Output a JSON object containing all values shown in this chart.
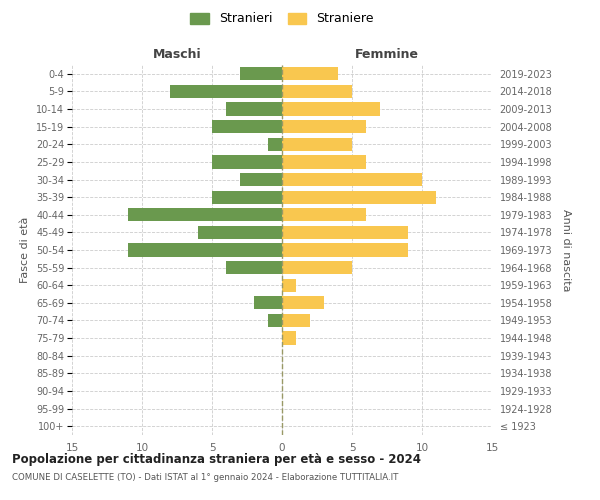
{
  "age_groups": [
    "100+",
    "95-99",
    "90-94",
    "85-89",
    "80-84",
    "75-79",
    "70-74",
    "65-69",
    "60-64",
    "55-59",
    "50-54",
    "45-49",
    "40-44",
    "35-39",
    "30-34",
    "25-29",
    "20-24",
    "15-19",
    "10-14",
    "5-9",
    "0-4"
  ],
  "birth_years": [
    "≤ 1923",
    "1924-1928",
    "1929-1933",
    "1934-1938",
    "1939-1943",
    "1944-1948",
    "1949-1953",
    "1954-1958",
    "1959-1963",
    "1964-1968",
    "1969-1973",
    "1974-1978",
    "1979-1983",
    "1984-1988",
    "1989-1993",
    "1994-1998",
    "1999-2003",
    "2004-2008",
    "2009-2013",
    "2014-2018",
    "2019-2023"
  ],
  "maschi": [
    0,
    0,
    0,
    0,
    0,
    0,
    1,
    2,
    0,
    4,
    11,
    6,
    11,
    5,
    3,
    5,
    1,
    5,
    4,
    8,
    3
  ],
  "femmine": [
    0,
    0,
    0,
    0,
    0,
    1,
    2,
    3,
    1,
    5,
    9,
    9,
    6,
    11,
    10,
    6,
    5,
    6,
    7,
    5,
    4
  ],
  "male_color": "#6a994e",
  "female_color": "#f9c74f",
  "title": "Popolazione per cittadinanza straniera per età e sesso - 2024",
  "subtitle": "COMUNE DI CASELETTE (TO) - Dati ISTAT al 1° gennaio 2024 - Elaborazione TUTTITALIA.IT",
  "ylabel_left": "Fasce di età",
  "ylabel_right": "Anni di nascita",
  "xlabel_maschi": "Maschi",
  "xlabel_femmine": "Femmine",
  "legend_maschi": "Stranieri",
  "legend_femmine": "Straniere",
  "xlim": 15,
  "background_color": "#ffffff",
  "grid_color": "#cccccc"
}
